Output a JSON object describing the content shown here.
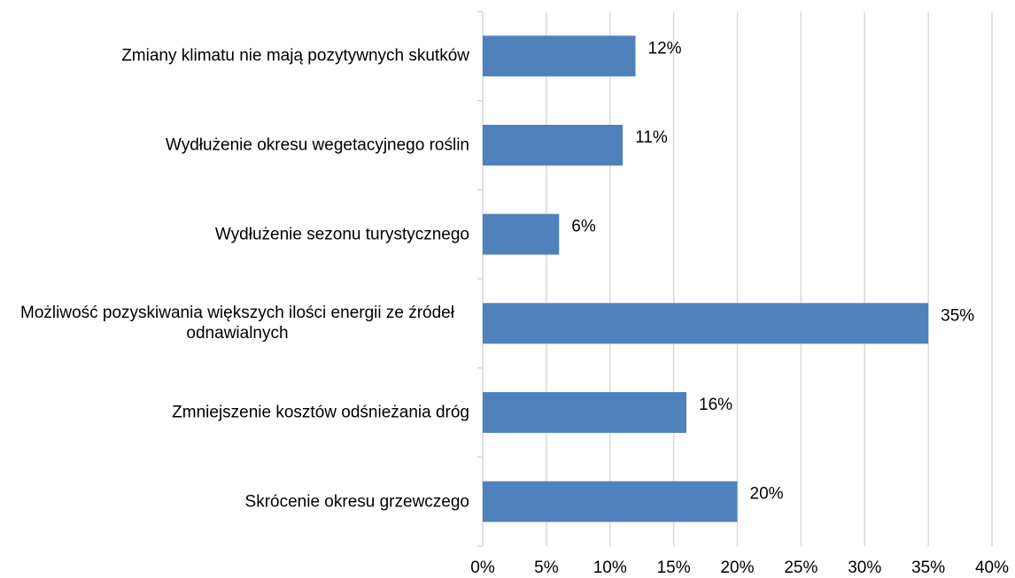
{
  "chart_data": {
    "type": "barh",
    "categories": [
      "Zmiany klimatu nie mają pozytywnych skutków",
      "Wydłużenie okresu wegetacyjnego roślin",
      "Wydłużenie sezonu turystycznego",
      "Możliwość pozyskiwania większych ilości energii ze źródeł odnawialnych",
      "Zmniejszenie kosztów odśnieżania dróg",
      "Skrócenie okresu grzewczego"
    ],
    "values": [
      12,
      11,
      6,
      35,
      16,
      20
    ],
    "value_labels": [
      "12%",
      "11%",
      "6%",
      "35%",
      "16%",
      "20%"
    ],
    "color": "#4f81bd",
    "xlim": [
      0,
      40
    ],
    "xticks": [
      {
        "value": 0,
        "label": "0%"
      },
      {
        "value": 5,
        "label": "5%"
      },
      {
        "value": 10,
        "label": "10%"
      },
      {
        "value": 15,
        "label": "15%"
      },
      {
        "value": 20,
        "label": "20%"
      },
      {
        "value": 25,
        "label": "25%"
      },
      {
        "value": 30,
        "label": "30%"
      },
      {
        "value": 35,
        "label": "35%"
      },
      {
        "value": 40,
        "label": "40%"
      }
    ],
    "grid": true
  }
}
